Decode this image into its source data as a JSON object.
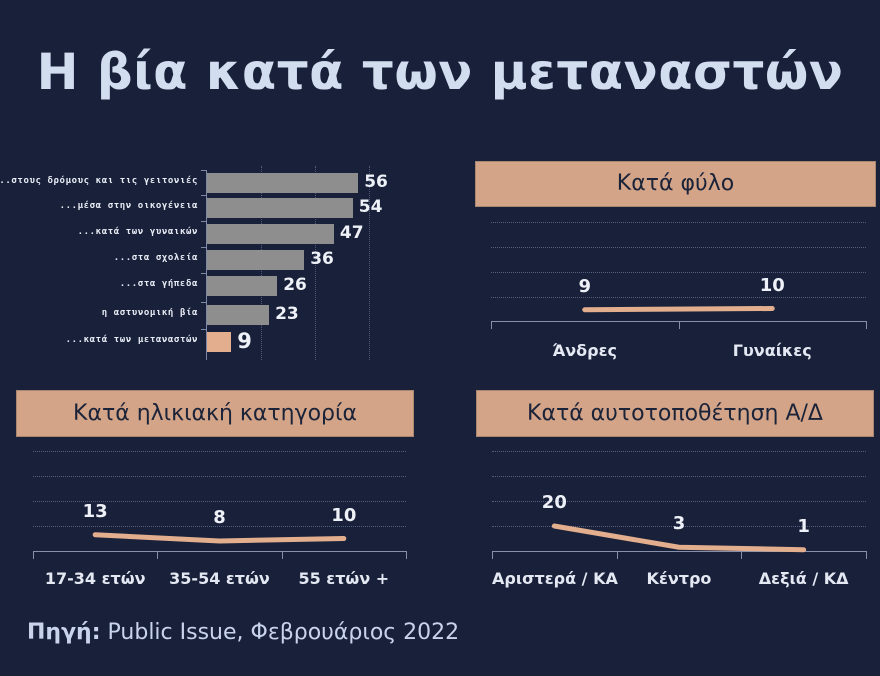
{
  "title": "Η βία κατά των μεταναστών",
  "source": {
    "label": "Πηγή:",
    "text": " Public Issue, Φεβρουάριος 2022"
  },
  "colors": {
    "background": "#19213A",
    "accent": "#D4A488",
    "bar": "#8E8E8E",
    "highlight_bar": "#E2AE8D",
    "line": "#E2AE8D",
    "title": "#D3DDF0"
  },
  "panels": {
    "gender": {
      "header": "Κατά φύλο"
    },
    "age": {
      "header": "Κατά ηλικιακή κατηγορία"
    },
    "position": {
      "header": "Κατά αυτοτοποθέτηση Α/Δ"
    }
  },
  "chart_data": [
    {
      "type": "bar",
      "orientation": "horizontal",
      "title": "",
      "categories": [
        "...στους δρόμους και τις γειτονιές",
        "...μέσα στην οικογένεια",
        "...κατά των γυναικών",
        "...στα σχολεία",
        "...στα γήπεδα",
        "η αστυνομική βία",
        "...κατά των μεταναστών"
      ],
      "values": [
        56,
        54,
        47,
        36,
        26,
        23,
        9
      ],
      "highlight_index": 6,
      "xlim": [
        0,
        60
      ],
      "grid": "vertical dotted at 20, 40, 60"
    },
    {
      "type": "line",
      "title": "Κατά φύλο",
      "categories": [
        "Άνδρες",
        "Γυναίκες"
      ],
      "values": [
        9,
        10
      ],
      "ylim": [
        0,
        80
      ],
      "grid": "horizontal dotted every 20"
    },
    {
      "type": "line",
      "title": "Κατά ηλικιακή κατηγορία",
      "categories": [
        "17-34 ετών",
        "35-54 ετών",
        "55 ετών +"
      ],
      "values": [
        13,
        8,
        10
      ],
      "ylim": [
        0,
        80
      ],
      "grid": "horizontal dotted every 20"
    },
    {
      "type": "line",
      "title": "Κατά αυτοτοποθέτηση Α/Δ",
      "categories": [
        "Αριστερά / ΚΑ",
        "Κέντρο",
        "Δεξιά / ΚΔ"
      ],
      "values": [
        20,
        3,
        1
      ],
      "ylim": [
        0,
        80
      ],
      "grid": "horizontal dotted every 20"
    }
  ]
}
